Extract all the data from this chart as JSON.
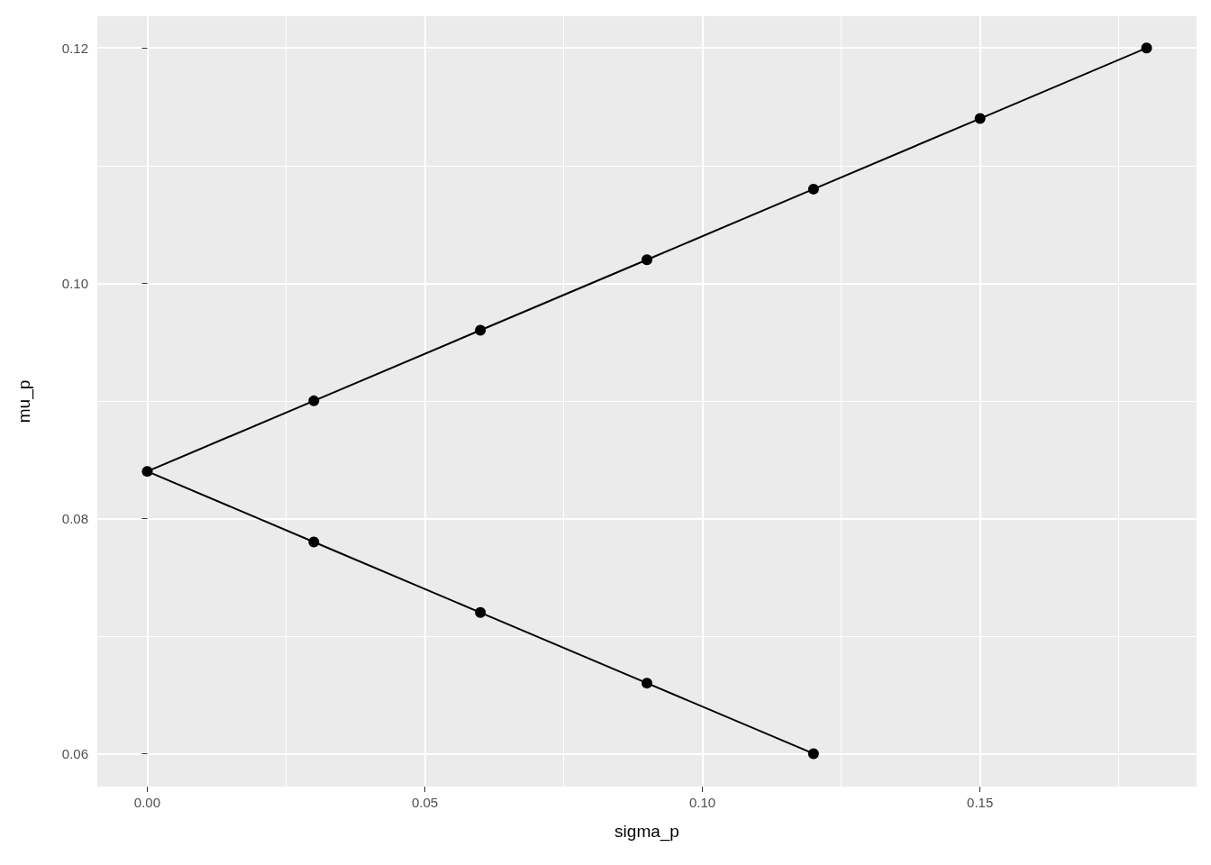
{
  "chart_data": {
    "type": "line",
    "xlabel": "sigma_p",
    "ylabel": "mu_p",
    "series": [
      {
        "color": "#000000",
        "x": [
          0.12,
          0.09,
          0.06,
          0.03,
          0,
          0.03,
          0.06,
          0.09,
          0.12,
          0.15,
          0.18
        ],
        "values": [
          0.06,
          0.066,
          0.072,
          0.078,
          0.084,
          0.09,
          0.096,
          0.102,
          0.108,
          0.114,
          0.12
        ]
      }
    ],
    "xlim": [
      -0.009,
      0.189
    ],
    "ylim": [
      0.0572,
      0.1227
    ],
    "xticks": [
      {
        "value": 0,
        "label": "0.00"
      },
      {
        "value": 0.025,
        "label": null
      },
      {
        "value": 0.05,
        "label": "0.05"
      },
      {
        "value": 0.075,
        "label": null
      },
      {
        "value": 0.1,
        "label": "0.10"
      },
      {
        "value": 0.125,
        "label": null
      },
      {
        "value": 0.15,
        "label": "0.15"
      },
      {
        "value": 0.175,
        "label": null
      }
    ],
    "yticks": [
      0.06,
      {
        "value": 0.07,
        "label": null
      },
      0.08,
      {
        "value": 0.09,
        "label": null
      },
      {
        "value": 0.1,
        "label": "0.10"
      },
      {
        "value": 0.11,
        "label": null
      },
      0.12
    ],
    "grid": true,
    "marker": "circle",
    "line_style": "solid"
  }
}
